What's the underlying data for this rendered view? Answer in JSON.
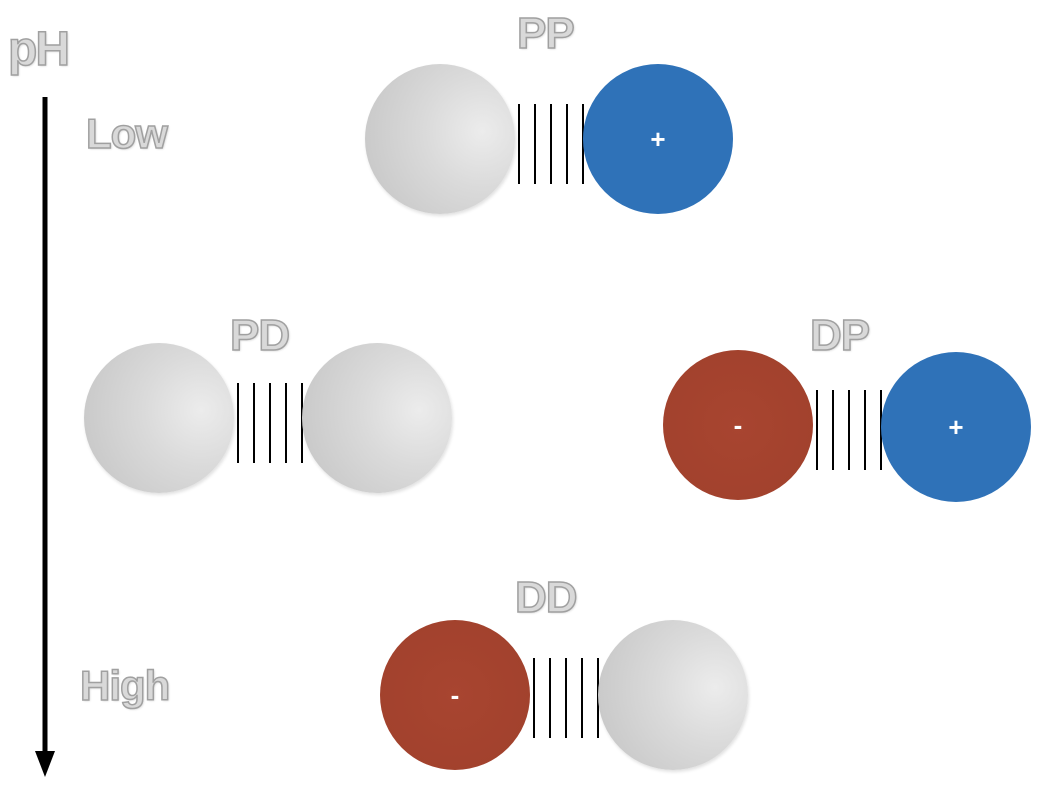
{
  "axis": {
    "title": "pH",
    "low_label": "Low",
    "high_label": "High"
  },
  "species": [
    {
      "label": "PP",
      "left_charge": "",
      "right_charge": "+"
    },
    {
      "label": "PD",
      "left_charge": "",
      "right_charge": ""
    },
    {
      "label": "DP",
      "left_charge": "-",
      "right_charge": "+"
    },
    {
      "label": "DD",
      "left_charge": "-",
      "right_charge": ""
    }
  ],
  "colors": {
    "positive": "#2f72b8",
    "negative": "#a3432e",
    "neutral": "#d6d6d6",
    "label_fill": "#d9d9d9",
    "label_outline": "#a0a0a0"
  }
}
